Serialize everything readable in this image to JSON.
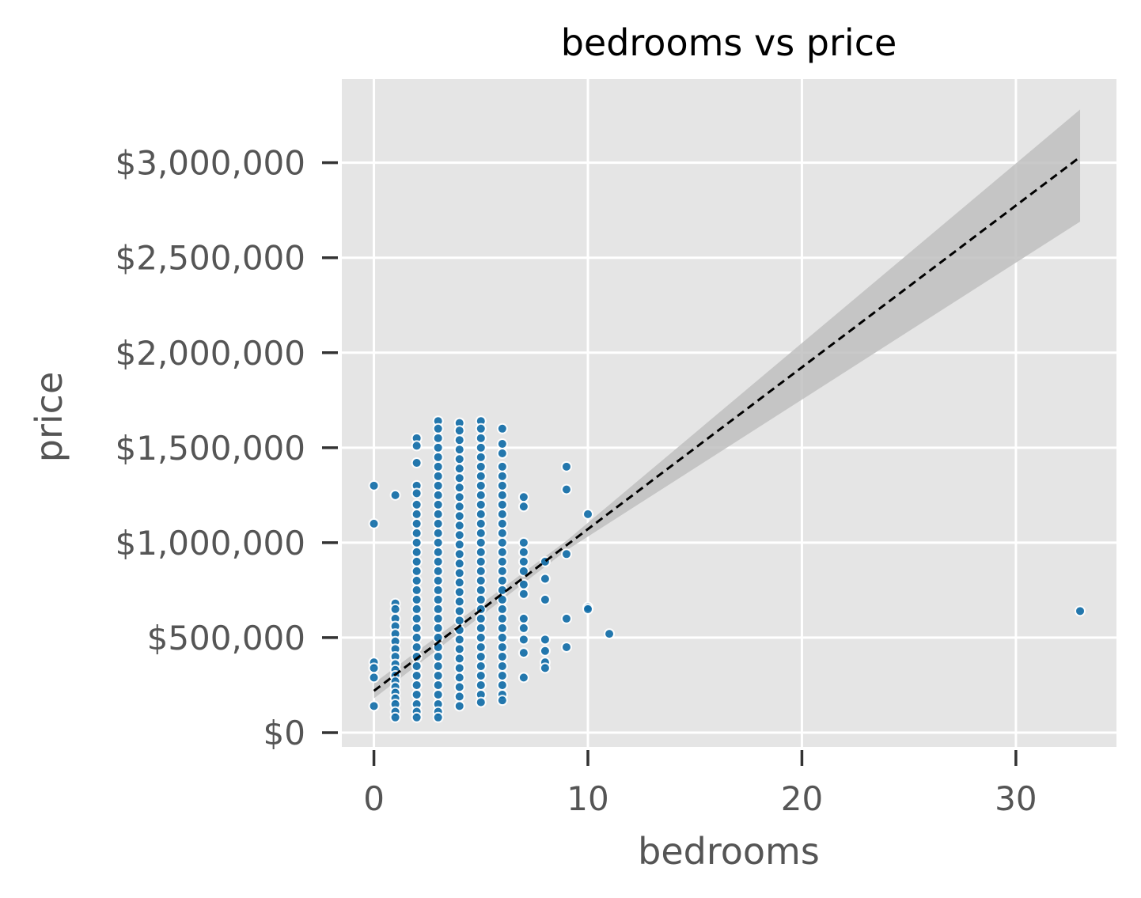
{
  "chart_data": {
    "type": "scatter",
    "title": "bedrooms vs price",
    "xlabel": "bedrooms",
    "ylabel": "price",
    "xlim": [
      -1.5,
      34.7
    ],
    "ylim": [
      -75000,
      3440000
    ],
    "grid": true,
    "background": "#e5e5e5",
    "grid_color": "#ffffff",
    "point_color": "#0f6ca8",
    "point_edge_color": "#ffffff",
    "trend_color": "#000000",
    "band_color": "#bfbfbf",
    "x_ticks": [
      {
        "value": 0,
        "label": "0"
      },
      {
        "value": 10,
        "label": "10"
      },
      {
        "value": 20,
        "label": "20"
      },
      {
        "value": 30,
        "label": "30"
      }
    ],
    "y_ticks": [
      {
        "value": 0,
        "label": "$0"
      },
      {
        "value": 500000,
        "label": "$500,000"
      },
      {
        "value": 1000000,
        "label": "$1,000,000"
      },
      {
        "value": 1500000,
        "label": "$1,500,000"
      },
      {
        "value": 2000000,
        "label": "$2,000,000"
      },
      {
        "value": 2500000,
        "label": "$2,500,000"
      },
      {
        "value": 3000000,
        "label": "$3,000,000"
      }
    ],
    "regression": {
      "line": [
        [
          0,
          220000
        ],
        [
          33,
          3030000
        ]
      ],
      "ci_upper": [
        [
          0,
          260000
        ],
        [
          9,
          1010000
        ],
        [
          33,
          3280000
        ]
      ],
      "ci_lower": [
        [
          0,
          180000
        ],
        [
          9,
          960000
        ],
        [
          33,
          2690000
        ]
      ]
    },
    "points": [
      [
        0,
        1300000
      ],
      [
        0,
        1100000
      ],
      [
        0,
        370000
      ],
      [
        0,
        340000
      ],
      [
        0,
        290000
      ],
      [
        0,
        140000
      ],
      [
        1,
        1250000
      ],
      [
        1,
        680000
      ],
      [
        1,
        650000
      ],
      [
        1,
        600000
      ],
      [
        1,
        560000
      ],
      [
        1,
        520000
      ],
      [
        1,
        480000
      ],
      [
        1,
        440000
      ],
      [
        1,
        400000
      ],
      [
        1,
        360000
      ],
      [
        1,
        330000
      ],
      [
        1,
        300000
      ],
      [
        1,
        270000
      ],
      [
        1,
        240000
      ],
      [
        1,
        210000
      ],
      [
        1,
        180000
      ],
      [
        1,
        150000
      ],
      [
        1,
        110000
      ],
      [
        1,
        80000
      ],
      [
        2,
        1550000
      ],
      [
        2,
        1510000
      ],
      [
        2,
        1420000
      ],
      [
        2,
        1300000
      ],
      [
        2,
        1260000
      ],
      [
        2,
        1200000
      ],
      [
        2,
        1150000
      ],
      [
        2,
        1100000
      ],
      [
        2,
        1050000
      ],
      [
        2,
        1000000
      ],
      [
        2,
        950000
      ],
      [
        2,
        900000
      ],
      [
        2,
        850000
      ],
      [
        2,
        800000
      ],
      [
        2,
        750000
      ],
      [
        2,
        700000
      ],
      [
        2,
        650000
      ],
      [
        2,
        600000
      ],
      [
        2,
        550000
      ],
      [
        2,
        500000
      ],
      [
        2,
        450000
      ],
      [
        2,
        400000
      ],
      [
        2,
        350000
      ],
      [
        2,
        300000
      ],
      [
        2,
        250000
      ],
      [
        2,
        200000
      ],
      [
        2,
        150000
      ],
      [
        2,
        110000
      ],
      [
        2,
        80000
      ],
      [
        3,
        1640000
      ],
      [
        3,
        1600000
      ],
      [
        3,
        1550000
      ],
      [
        3,
        1500000
      ],
      [
        3,
        1450000
      ],
      [
        3,
        1400000
      ],
      [
        3,
        1350000
      ],
      [
        3,
        1300000
      ],
      [
        3,
        1250000
      ],
      [
        3,
        1200000
      ],
      [
        3,
        1150000
      ],
      [
        3,
        1100000
      ],
      [
        3,
        1050000
      ],
      [
        3,
        1000000
      ],
      [
        3,
        950000
      ],
      [
        3,
        900000
      ],
      [
        3,
        850000
      ],
      [
        3,
        800000
      ],
      [
        3,
        750000
      ],
      [
        3,
        700000
      ],
      [
        3,
        650000
      ],
      [
        3,
        600000
      ],
      [
        3,
        550000
      ],
      [
        3,
        500000
      ],
      [
        3,
        450000
      ],
      [
        3,
        400000
      ],
      [
        3,
        350000
      ],
      [
        3,
        300000
      ],
      [
        3,
        250000
      ],
      [
        3,
        200000
      ],
      [
        3,
        150000
      ],
      [
        3,
        110000
      ],
      [
        3,
        80000
      ],
      [
        4,
        1630000
      ],
      [
        4,
        1590000
      ],
      [
        4,
        1540000
      ],
      [
        4,
        1490000
      ],
      [
        4,
        1440000
      ],
      [
        4,
        1390000
      ],
      [
        4,
        1340000
      ],
      [
        4,
        1290000
      ],
      [
        4,
        1240000
      ],
      [
        4,
        1190000
      ],
      [
        4,
        1140000
      ],
      [
        4,
        1090000
      ],
      [
        4,
        1040000
      ],
      [
        4,
        990000
      ],
      [
        4,
        940000
      ],
      [
        4,
        890000
      ],
      [
        4,
        840000
      ],
      [
        4,
        790000
      ],
      [
        4,
        740000
      ],
      [
        4,
        690000
      ],
      [
        4,
        640000
      ],
      [
        4,
        590000
      ],
      [
        4,
        540000
      ],
      [
        4,
        490000
      ],
      [
        4,
        440000
      ],
      [
        4,
        390000
      ],
      [
        4,
        340000
      ],
      [
        4,
        290000
      ],
      [
        4,
        240000
      ],
      [
        4,
        190000
      ],
      [
        4,
        140000
      ],
      [
        5,
        1640000
      ],
      [
        5,
        1600000
      ],
      [
        5,
        1550000
      ],
      [
        5,
        1500000
      ],
      [
        5,
        1450000
      ],
      [
        5,
        1400000
      ],
      [
        5,
        1350000
      ],
      [
        5,
        1300000
      ],
      [
        5,
        1250000
      ],
      [
        5,
        1200000
      ],
      [
        5,
        1150000
      ],
      [
        5,
        1100000
      ],
      [
        5,
        1050000
      ],
      [
        5,
        1000000
      ],
      [
        5,
        950000
      ],
      [
        5,
        900000
      ],
      [
        5,
        850000
      ],
      [
        5,
        800000
      ],
      [
        5,
        750000
      ],
      [
        5,
        700000
      ],
      [
        5,
        650000
      ],
      [
        5,
        600000
      ],
      [
        5,
        550000
      ],
      [
        5,
        500000
      ],
      [
        5,
        450000
      ],
      [
        5,
        400000
      ],
      [
        5,
        350000
      ],
      [
        5,
        300000
      ],
      [
        5,
        250000
      ],
      [
        5,
        200000
      ],
      [
        5,
        160000
      ],
      [
        6,
        1600000
      ],
      [
        6,
        1520000
      ],
      [
        6,
        1470000
      ],
      [
        6,
        1400000
      ],
      [
        6,
        1350000
      ],
      [
        6,
        1300000
      ],
      [
        6,
        1250000
      ],
      [
        6,
        1200000
      ],
      [
        6,
        1150000
      ],
      [
        6,
        1100000
      ],
      [
        6,
        1050000
      ],
      [
        6,
        1000000
      ],
      [
        6,
        950000
      ],
      [
        6,
        900000
      ],
      [
        6,
        850000
      ],
      [
        6,
        800000
      ],
      [
        6,
        750000
      ],
      [
        6,
        700000
      ],
      [
        6,
        650000
      ],
      [
        6,
        600000
      ],
      [
        6,
        550000
      ],
      [
        6,
        500000
      ],
      [
        6,
        450000
      ],
      [
        6,
        400000
      ],
      [
        6,
        350000
      ],
      [
        6,
        300000
      ],
      [
        6,
        250000
      ],
      [
        6,
        200000
      ],
      [
        6,
        170000
      ],
      [
        7,
        1240000
      ],
      [
        7,
        1190000
      ],
      [
        7,
        1000000
      ],
      [
        7,
        950000
      ],
      [
        7,
        900000
      ],
      [
        7,
        850000
      ],
      [
        7,
        780000
      ],
      [
        7,
        730000
      ],
      [
        7,
        600000
      ],
      [
        7,
        550000
      ],
      [
        7,
        490000
      ],
      [
        7,
        420000
      ],
      [
        7,
        290000
      ],
      [
        8,
        900000
      ],
      [
        8,
        810000
      ],
      [
        8,
        700000
      ],
      [
        8,
        490000
      ],
      [
        8,
        430000
      ],
      [
        8,
        370000
      ],
      [
        8,
        340000
      ],
      [
        9,
        1400000
      ],
      [
        9,
        1280000
      ],
      [
        9,
        940000
      ],
      [
        9,
        600000
      ],
      [
        9,
        450000
      ],
      [
        10,
        1150000
      ],
      [
        10,
        660000
      ],
      [
        10,
        650000
      ],
      [
        11,
        520000
      ],
      [
        33,
        640000
      ]
    ]
  }
}
